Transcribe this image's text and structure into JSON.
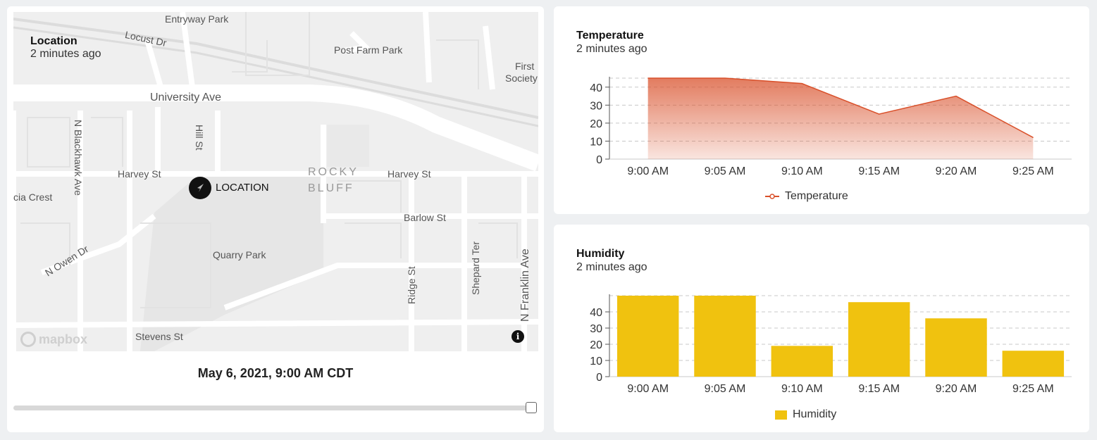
{
  "map_panel": {
    "title": "Location",
    "subtitle": "2 minutes ago",
    "marker_label": "LOCATION",
    "attribution": "mapbox",
    "info_icon": "info-icon",
    "streets": {
      "entryway_park": "Entryway Park",
      "locust_dr": "Locust Dr",
      "post_farm_park": "Post Farm Park",
      "first_society_1": "First",
      "first_society_2": "Society",
      "university_ave": "University Ave",
      "hill_st": "Hill St",
      "n_blackhawk_ave": "N Blackhawk Ave",
      "harvey_st_w": "Harvey St",
      "rocky": "ROCKY",
      "bluff": "BLUFF",
      "harvey_st_e": "Harvey St",
      "cia_crest": "cia Crest",
      "barlow_st": "Barlow St",
      "shepard_ter": "Shepard Ter",
      "quarry_park": "Quarry Park",
      "n_owen_dr": "N Owen Dr",
      "ridge_st": "Ridge St",
      "n_franklin_ave": "N Franklin Ave",
      "stevens_st": "Stevens St"
    },
    "timestamp": "May 6, 2021, 9:00 AM CDT",
    "slider_value": 1.0
  },
  "temperature_panel": {
    "title": "Temperature",
    "subtitle": "2 minutes ago",
    "legend": "Temperature",
    "color": "#d9502a"
  },
  "humidity_panel": {
    "title": "Humidity",
    "subtitle": "2 minutes ago",
    "legend": "Humidity",
    "color": "#f0c20f"
  },
  "chart_data": [
    {
      "type": "area",
      "categories": [
        "9:00 AM",
        "9:05 AM",
        "9:10 AM",
        "9:15 AM",
        "9:20 AM",
        "9:25 AM"
      ],
      "series": [
        {
          "name": "Temperature",
          "values": [
            45,
            45,
            42,
            25,
            35,
            12
          ]
        }
      ],
      "yticks": [
        0,
        10,
        20,
        30,
        40
      ],
      "ylim": [
        0,
        45
      ],
      "grid": true,
      "legend": "bottom"
    },
    {
      "type": "bar",
      "categories": [
        "9:00 AM",
        "9:05 AM",
        "9:10 AM",
        "9:15 AM",
        "9:20 AM",
        "9:25 AM"
      ],
      "series": [
        {
          "name": "Humidity",
          "values": [
            50,
            50,
            19,
            46,
            36,
            16
          ]
        }
      ],
      "yticks": [
        0,
        10,
        20,
        30,
        40
      ],
      "ylim": [
        0,
        50
      ],
      "grid": true,
      "legend": "bottom"
    }
  ]
}
